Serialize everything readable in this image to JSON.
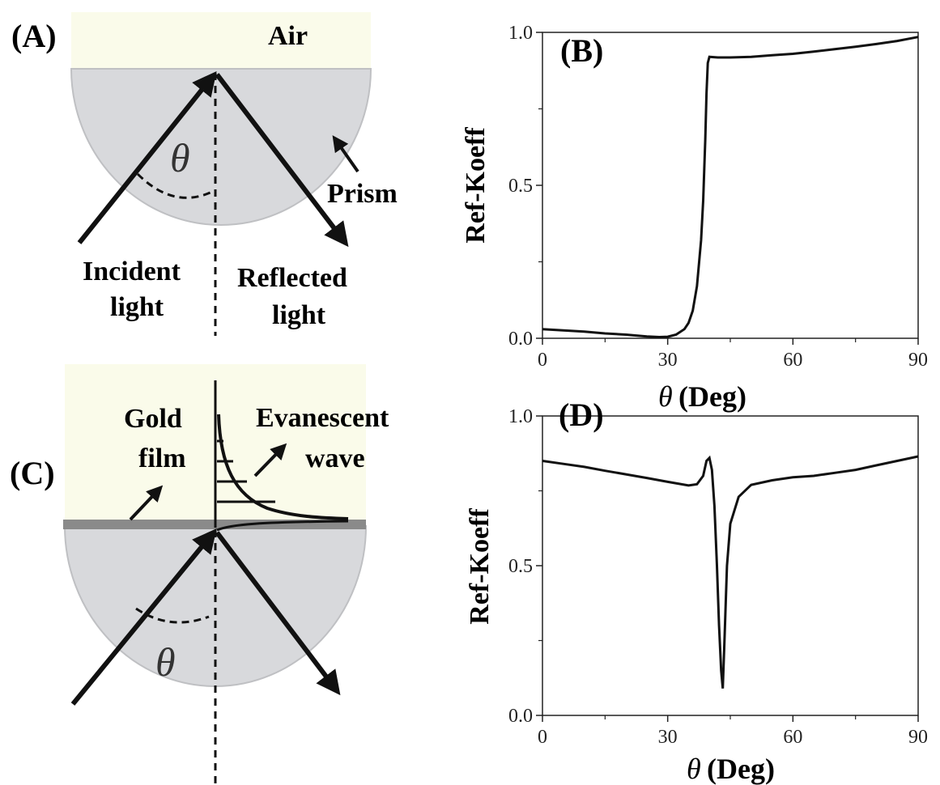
{
  "panels": {
    "A": {
      "label": "(A)",
      "air_label": "Air",
      "prism_label": "Prism",
      "angle_symbol": "θ",
      "incident_label": [
        "Incident",
        "light"
      ],
      "reflected_label": [
        "Reflected",
        "light"
      ]
    },
    "C": {
      "label": "(C)",
      "gold_label": [
        "Gold",
        "film"
      ],
      "evanescent_label": [
        "Evanescent",
        "wave"
      ],
      "angle_symbol": "θ"
    }
  },
  "colors": {
    "air": "#fafbea",
    "prism": "#d8d9dc",
    "prism_edge": "#bfc0c3",
    "gold_film": "#8a8a8a",
    "ink": "#111111"
  },
  "chart_data": [
    {
      "panel_label": "(B)",
      "type": "line",
      "xlabel_symbol": "θ",
      "xlabel": "(Deg)",
      "ylabel": "Ref-Koeff",
      "xlim": [
        0,
        90
      ],
      "ylim": [
        0,
        1.0
      ],
      "xticks": [
        0,
        30,
        60,
        90
      ],
      "yticks": [
        0.0,
        0.5,
        1.0
      ],
      "ytick_labels": [
        "0.0",
        "0.5",
        "1.0"
      ],
      "series": [
        {
          "x": [
            0,
            5,
            10,
            15,
            20,
            25,
            28,
            30,
            32,
            34,
            35,
            36,
            37,
            38,
            38.5,
            39,
            39.3,
            39.6,
            40,
            42,
            45,
            50,
            55,
            60,
            65,
            70,
            75,
            80,
            85,
            90
          ],
          "y": [
            0.03,
            0.026,
            0.022,
            0.016,
            0.012,
            0.006,
            0.004,
            0.005,
            0.012,
            0.03,
            0.05,
            0.09,
            0.17,
            0.32,
            0.45,
            0.65,
            0.8,
            0.9,
            0.92,
            0.918,
            0.918,
            0.92,
            0.925,
            0.93,
            0.937,
            0.945,
            0.953,
            0.962,
            0.972,
            0.985
          ]
        }
      ]
    },
    {
      "panel_label": "(D)",
      "type": "line",
      "xlabel_symbol": "θ",
      "xlabel": "(Deg)",
      "ylabel": "Ref-Koeff",
      "xlim": [
        0,
        90
      ],
      "ylim": [
        0,
        1.0
      ],
      "xticks": [
        0,
        30,
        60,
        90
      ],
      "yticks": [
        0.0,
        0.5,
        1.0
      ],
      "ytick_labels": [
        "0.0",
        "0.5",
        "1.0"
      ],
      "series": [
        {
          "x": [
            0,
            5,
            10,
            15,
            20,
            25,
            30,
            35,
            37,
            38.5,
            39.3,
            40,
            40.6,
            41.2,
            41.8,
            42.3,
            42.8,
            43.2,
            43.6,
            44.2,
            45,
            47,
            50,
            55,
            60,
            65,
            70,
            75,
            80,
            85,
            90
          ],
          "y": [
            0.85,
            0.84,
            0.83,
            0.817,
            0.805,
            0.793,
            0.78,
            0.768,
            0.772,
            0.8,
            0.85,
            0.86,
            0.82,
            0.7,
            0.5,
            0.3,
            0.15,
            0.09,
            0.25,
            0.5,
            0.64,
            0.73,
            0.77,
            0.785,
            0.795,
            0.8,
            0.81,
            0.82,
            0.835,
            0.85,
            0.865
          ]
        }
      ]
    }
  ]
}
